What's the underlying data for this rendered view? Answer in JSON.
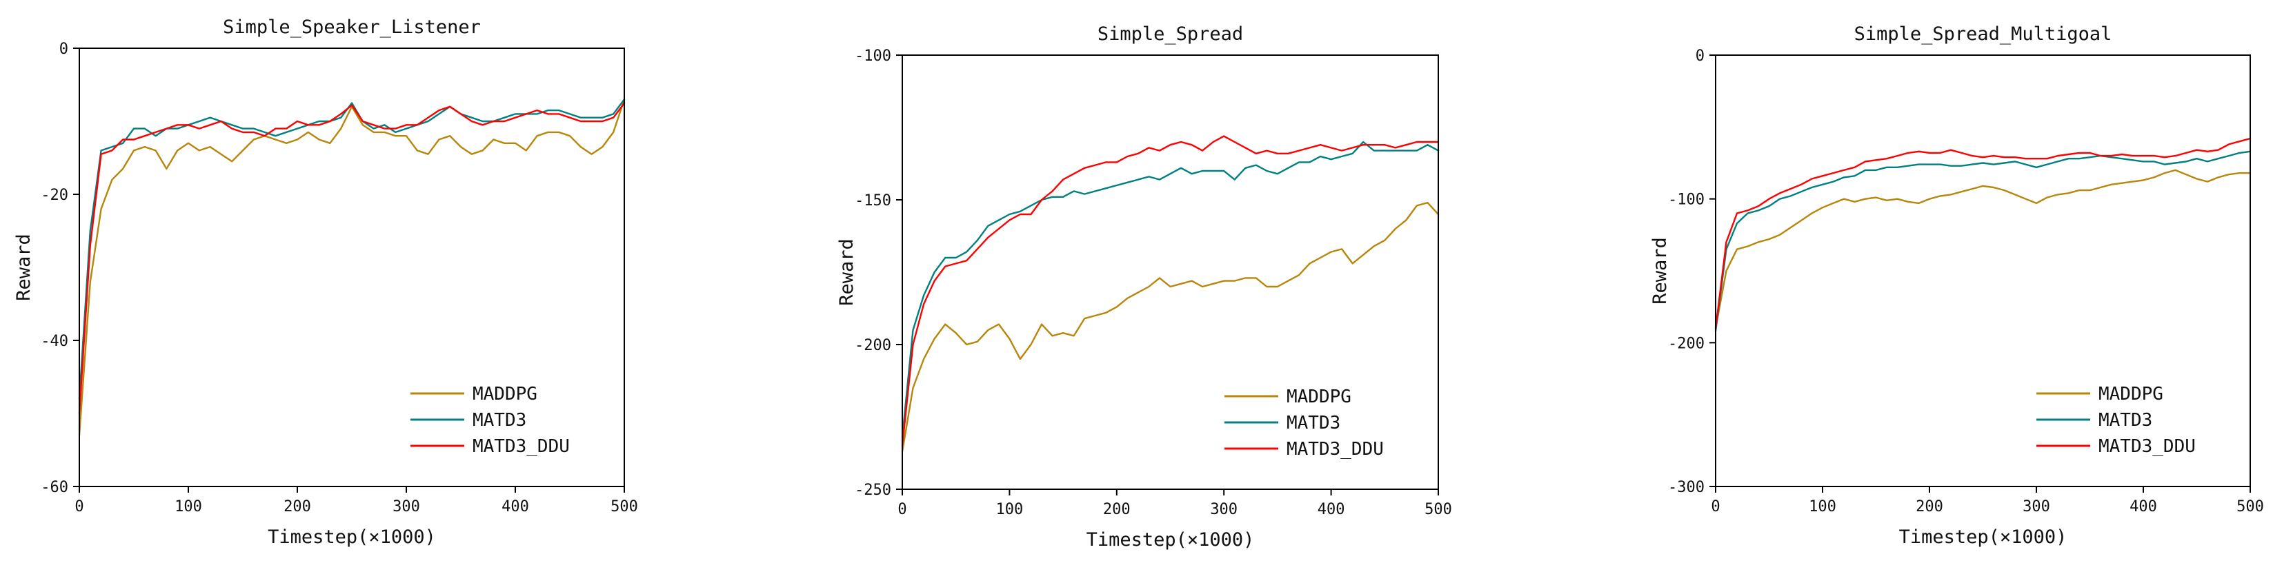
{
  "colors": {
    "MADDPG": "#B8860B",
    "MATD3": "#008080",
    "MATD3_DDU": "#FF0000"
  },
  "chart_data": [
    {
      "type": "line",
      "title": "Simple_Speaker_Listener",
      "xlabel": "Timestep(×1000)",
      "ylabel": "Reward",
      "xlim": [
        0,
        500
      ],
      "ylim": [
        -60,
        0
      ],
      "xticks": [
        0,
        100,
        200,
        300,
        400,
        500
      ],
      "yticks": [
        -60,
        -40,
        -20,
        0
      ],
      "legend": "bottom-right",
      "series": [
        {
          "name": "MADDPG",
          "x": [
            0,
            10,
            20,
            30,
            40,
            50,
            60,
            70,
            80,
            90,
            100,
            110,
            120,
            130,
            140,
            150,
            160,
            170,
            180,
            190,
            200,
            210,
            220,
            230,
            240,
            250,
            260,
            270,
            280,
            290,
            300,
            310,
            320,
            330,
            340,
            350,
            360,
            370,
            380,
            390,
            400,
            410,
            420,
            430,
            440,
            450,
            460,
            470,
            480,
            490,
            500
          ],
          "y": [
            -53,
            -32,
            -22,
            -18,
            -16.5,
            -14,
            -13.5,
            -14,
            -16.5,
            -14,
            -13,
            -14,
            -13.5,
            -14.5,
            -15.5,
            -14,
            -12.5,
            -12,
            -12.5,
            -13,
            -12.5,
            -11.5,
            -12.5,
            -13,
            -11,
            -8,
            -10.5,
            -11.5,
            -11.5,
            -12,
            -12,
            -14,
            -14.5,
            -12.5,
            -12,
            -13.5,
            -14.5,
            -14,
            -12.5,
            -13,
            -13,
            -14,
            -12,
            -11.5,
            -11.5,
            -12,
            -13.5,
            -14.5,
            -13.5,
            -11.5,
            -7
          ]
        },
        {
          "name": "MATD3",
          "x": [
            0,
            10,
            20,
            30,
            40,
            50,
            60,
            70,
            80,
            90,
            100,
            110,
            120,
            130,
            140,
            150,
            160,
            170,
            180,
            190,
            200,
            210,
            220,
            230,
            240,
            250,
            260,
            270,
            280,
            290,
            300,
            310,
            320,
            330,
            340,
            350,
            360,
            370,
            380,
            390,
            400,
            410,
            420,
            430,
            440,
            450,
            460,
            470,
            480,
            490,
            500
          ],
          "y": [
            -48,
            -25,
            -14,
            -13.5,
            -13,
            -11,
            -11,
            -12,
            -11,
            -11,
            -10.5,
            -10,
            -9.5,
            -10,
            -10.5,
            -11,
            -11,
            -11.5,
            -12,
            -11.5,
            -11,
            -10.5,
            -10,
            -10,
            -9.5,
            -7.5,
            -10,
            -11,
            -10.5,
            -11.5,
            -11,
            -10.5,
            -10,
            -9,
            -8,
            -9,
            -9.5,
            -10,
            -10,
            -9.5,
            -9,
            -9,
            -9,
            -8.5,
            -8.5,
            -9,
            -9.5,
            -9.5,
            -9.5,
            -9,
            -7
          ]
        },
        {
          "name": "MATD3_DDU",
          "x": [
            0,
            10,
            20,
            30,
            40,
            50,
            60,
            70,
            80,
            90,
            100,
            110,
            120,
            130,
            140,
            150,
            160,
            170,
            180,
            190,
            200,
            210,
            220,
            230,
            240,
            250,
            260,
            270,
            280,
            290,
            300,
            310,
            320,
            330,
            340,
            350,
            360,
            370,
            380,
            390,
            400,
            410,
            420,
            430,
            440,
            450,
            460,
            470,
            480,
            490,
            500
          ],
          "y": [
            -50,
            -27,
            -14.5,
            -14,
            -12.5,
            -12.5,
            -12,
            -11.5,
            -11,
            -10.5,
            -10.5,
            -11,
            -10.5,
            -10,
            -11,
            -11.5,
            -11.5,
            -12,
            -11,
            -11,
            -10,
            -10.5,
            -10.5,
            -10,
            -9,
            -7.8,
            -10,
            -10.5,
            -11,
            -11,
            -10.5,
            -10.5,
            -9.5,
            -8.5,
            -8,
            -9,
            -10,
            -10.5,
            -10,
            -10,
            -9.5,
            -9,
            -8.5,
            -9,
            -9,
            -9.5,
            -10,
            -10,
            -10,
            -9.5,
            -7.5
          ]
        }
      ]
    },
    {
      "type": "line",
      "title": "Simple_Spread",
      "xlabel": "Timestep(×1000)",
      "ylabel": "Reward",
      "xlim": [
        0,
        500
      ],
      "ylim": [
        -250,
        -100
      ],
      "xticks": [
        0,
        100,
        200,
        300,
        400,
        500
      ],
      "yticks": [
        -250,
        -200,
        -150,
        -100
      ],
      "legend": "bottom-right",
      "series": [
        {
          "name": "MADDPG",
          "x": [
            0,
            10,
            20,
            30,
            40,
            50,
            60,
            70,
            80,
            90,
            100,
            110,
            120,
            130,
            140,
            150,
            160,
            170,
            180,
            190,
            200,
            210,
            220,
            230,
            240,
            250,
            260,
            270,
            280,
            290,
            300,
            310,
            320,
            330,
            340,
            350,
            360,
            370,
            380,
            390,
            400,
            410,
            420,
            430,
            440,
            450,
            460,
            470,
            480,
            490,
            500
          ],
          "y": [
            -237,
            -215,
            -205,
            -198,
            -193,
            -196,
            -200,
            -199,
            -195,
            -193,
            -198,
            -205,
            -200,
            -193,
            -197,
            -196,
            -197,
            -191,
            -190,
            -189,
            -187,
            -184,
            -182,
            -180,
            -177,
            -180,
            -179,
            -178,
            -180,
            -179,
            -178,
            -178,
            -177,
            -177,
            -180,
            -180,
            -178,
            -176,
            -172,
            -170,
            -168,
            -167,
            -172,
            -169,
            -166,
            -164,
            -160,
            -157,
            -152,
            -151,
            -155
          ]
        },
        {
          "name": "MATD3",
          "x": [
            0,
            10,
            20,
            30,
            40,
            50,
            60,
            70,
            80,
            90,
            100,
            110,
            120,
            130,
            140,
            150,
            160,
            170,
            180,
            190,
            200,
            210,
            220,
            230,
            240,
            250,
            260,
            270,
            280,
            290,
            300,
            310,
            320,
            330,
            340,
            350,
            360,
            370,
            380,
            390,
            400,
            410,
            420,
            430,
            440,
            450,
            460,
            470,
            480,
            490,
            500
          ],
          "y": [
            -232,
            -195,
            -183,
            -175,
            -170,
            -170,
            -168,
            -164,
            -159,
            -157,
            -155,
            -154,
            -152,
            -150,
            -149,
            -149,
            -147,
            -148,
            -147,
            -146,
            -145,
            -144,
            -143,
            -142,
            -143,
            -141,
            -139,
            -141,
            -140,
            -140,
            -140,
            -143,
            -139,
            -138,
            -140,
            -141,
            -139,
            -137,
            -137,
            -135,
            -136,
            -135,
            -134,
            -130,
            -133,
            -133,
            -133,
            -133,
            -133,
            -131,
            -133
          ]
        },
        {
          "name": "MATD3_DDU",
          "x": [
            0,
            10,
            20,
            30,
            40,
            50,
            60,
            70,
            80,
            90,
            100,
            110,
            120,
            130,
            140,
            150,
            160,
            170,
            180,
            190,
            200,
            210,
            220,
            230,
            240,
            250,
            260,
            270,
            280,
            290,
            300,
            310,
            320,
            330,
            340,
            350,
            360,
            370,
            380,
            390,
            400,
            410,
            420,
            430,
            440,
            450,
            460,
            470,
            480,
            490,
            500
          ],
          "y": [
            -235,
            -200,
            -186,
            -178,
            -173,
            -172,
            -171,
            -167,
            -163,
            -160,
            -157,
            -155,
            -155,
            -150,
            -147,
            -143,
            -141,
            -139,
            -138,
            -137,
            -137,
            -135,
            -134,
            -132,
            -133,
            -131,
            -130,
            -131,
            -133,
            -130,
            -128,
            -130,
            -132,
            -134,
            -133,
            -134,
            -134,
            -133,
            -132,
            -131,
            -132,
            -133,
            -132,
            -131,
            -131,
            -131,
            -132,
            -131,
            -130,
            -130,
            -130
          ]
        }
      ]
    },
    {
      "type": "line",
      "title": "Simple_Spread_Multigoal",
      "xlabel": "Timestep(×1000)",
      "ylabel": "Reward",
      "xlim": [
        0,
        500
      ],
      "ylim": [
        -300,
        0
      ],
      "xticks": [
        0,
        100,
        200,
        300,
        400,
        500
      ],
      "yticks": [
        -300,
        -200,
        -100,
        0
      ],
      "legend": "bottom-right",
      "series": [
        {
          "name": "MADDPG",
          "x": [
            0,
            10,
            20,
            30,
            40,
            50,
            60,
            70,
            80,
            90,
            100,
            110,
            120,
            130,
            140,
            150,
            160,
            170,
            180,
            190,
            200,
            210,
            220,
            230,
            240,
            250,
            260,
            270,
            280,
            290,
            300,
            310,
            320,
            330,
            340,
            350,
            360,
            370,
            380,
            390,
            400,
            410,
            420,
            430,
            440,
            450,
            460,
            470,
            480,
            490,
            500
          ],
          "y": [
            -190,
            -150,
            -135,
            -133,
            -130,
            -128,
            -125,
            -120,
            -115,
            -110,
            -106,
            -103,
            -100,
            -102,
            -100,
            -99,
            -101,
            -100,
            -102,
            -103,
            -100,
            -98,
            -97,
            -95,
            -93,
            -91,
            -92,
            -94,
            -97,
            -100,
            -103,
            -99,
            -97,
            -96,
            -94,
            -94,
            -92,
            -90,
            -89,
            -88,
            -87,
            -85,
            -82,
            -80,
            -83,
            -86,
            -88,
            -85,
            -83,
            -82,
            -82
          ]
        },
        {
          "name": "MATD3",
          "x": [
            0,
            10,
            20,
            30,
            40,
            50,
            60,
            70,
            80,
            90,
            100,
            110,
            120,
            130,
            140,
            150,
            160,
            170,
            180,
            190,
            200,
            210,
            220,
            230,
            240,
            250,
            260,
            270,
            280,
            290,
            300,
            310,
            320,
            330,
            340,
            350,
            360,
            370,
            380,
            390,
            400,
            410,
            420,
            430,
            440,
            450,
            460,
            470,
            480,
            490,
            500
          ],
          "y": [
            -192,
            -135,
            -117,
            -110,
            -108,
            -105,
            -100,
            -98,
            -95,
            -92,
            -90,
            -88,
            -85,
            -84,
            -80,
            -80,
            -78,
            -78,
            -77,
            -76,
            -76,
            -76,
            -77,
            -77,
            -76,
            -75,
            -76,
            -75,
            -74,
            -76,
            -78,
            -76,
            -74,
            -72,
            -72,
            -71,
            -70,
            -71,
            -72,
            -73,
            -74,
            -74,
            -76,
            -75,
            -74,
            -72,
            -74,
            -72,
            -70,
            -68,
            -67
          ]
        },
        {
          "name": "MATD3_DDU",
          "x": [
            0,
            10,
            20,
            30,
            40,
            50,
            60,
            70,
            80,
            90,
            100,
            110,
            120,
            130,
            140,
            150,
            160,
            170,
            180,
            190,
            200,
            210,
            220,
            230,
            240,
            250,
            260,
            270,
            280,
            290,
            300,
            310,
            320,
            330,
            340,
            350,
            360,
            370,
            380,
            390,
            400,
            410,
            420,
            430,
            440,
            450,
            460,
            470,
            480,
            490,
            500
          ],
          "y": [
            -190,
            -130,
            -110,
            -108,
            -105,
            -100,
            -96,
            -93,
            -90,
            -86,
            -84,
            -82,
            -80,
            -78,
            -74,
            -73,
            -72,
            -70,
            -68,
            -67,
            -68,
            -68,
            -66,
            -68,
            -70,
            -71,
            -70,
            -71,
            -71,
            -72,
            -72,
            -72,
            -70,
            -69,
            -68,
            -68,
            -70,
            -70,
            -69,
            -70,
            -70,
            -70,
            -71,
            -70,
            -68,
            -66,
            -67,
            -66,
            -62,
            -60,
            -58
          ]
        }
      ]
    }
  ]
}
